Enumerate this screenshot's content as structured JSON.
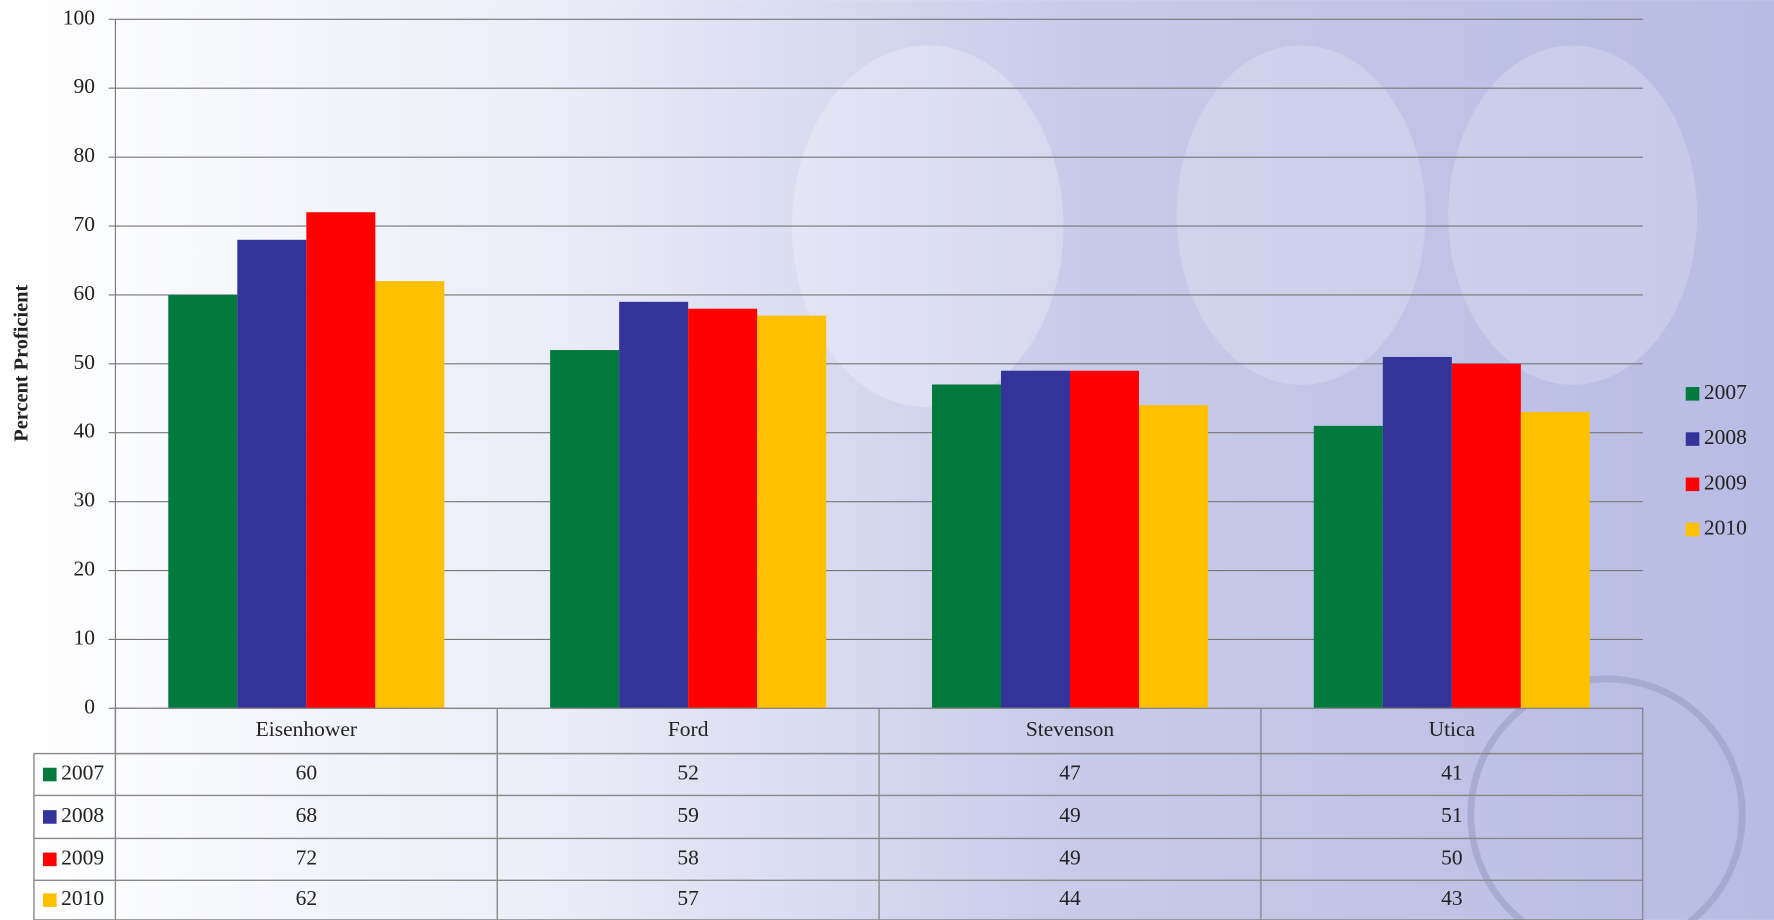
{
  "chart_data": {
    "type": "bar",
    "y_label": "Percent Proficient",
    "categories": [
      "Eisenhower",
      "Ford",
      "Stevenson",
      "Utica"
    ],
    "series": [
      {
        "name": "2007",
        "color": "#007a3d",
        "values": [
          60,
          52,
          47,
          41
        ]
      },
      {
        "name": "2008",
        "color": "#333399",
        "values": [
          68,
          59,
          49,
          51
        ]
      },
      {
        "name": "2009",
        "color": "#ff0000",
        "values": [
          72,
          58,
          49,
          50
        ]
      },
      {
        "name": "2010",
        "color": "#ffc000",
        "values": [
          62,
          57,
          44,
          43
        ]
      }
    ],
    "ylim": [
      0,
      100
    ],
    "yticks": [
      0,
      10,
      20,
      30,
      40,
      50,
      60,
      70,
      80,
      90,
      100
    ],
    "grid": true,
    "legend": "right",
    "data_table": true
  }
}
